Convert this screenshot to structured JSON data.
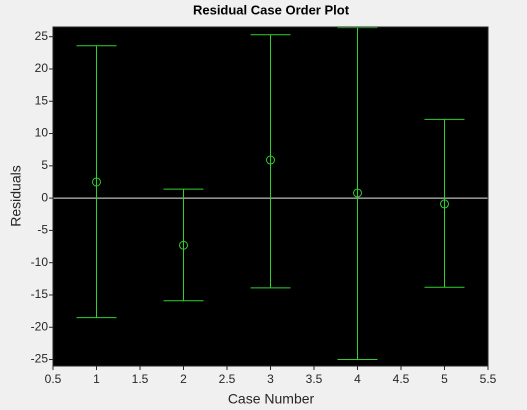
{
  "chart_data": {
    "type": "errorbar",
    "title": "Residual Case Order Plot",
    "x_label": "Case Number",
    "y_label": "Residuals",
    "x": [
      1,
      2,
      3,
      4,
      5
    ],
    "values": [
      2.5,
      -7.3,
      5.9,
      0.8,
      -0.9
    ],
    "lower": [
      -18.5,
      -15.9,
      -13.9,
      -25.0,
      -13.8
    ],
    "upper": [
      23.6,
      1.4,
      25.3,
      26.4,
      12.2
    ],
    "color": "#2fd12f",
    "reference_line": 0,
    "reference_color": "#e8e8e8",
    "xlim": [
      0.5,
      5.5
    ],
    "xticks": [
      0.5,
      1,
      1.5,
      2,
      2.5,
      3,
      3.5,
      4,
      4.5,
      5,
      5.5
    ],
    "ylim": [
      -26,
      26.5
    ],
    "yticks": [
      -25,
      -20,
      -15,
      -10,
      -5,
      0,
      5,
      10,
      15,
      20,
      25
    ]
  }
}
